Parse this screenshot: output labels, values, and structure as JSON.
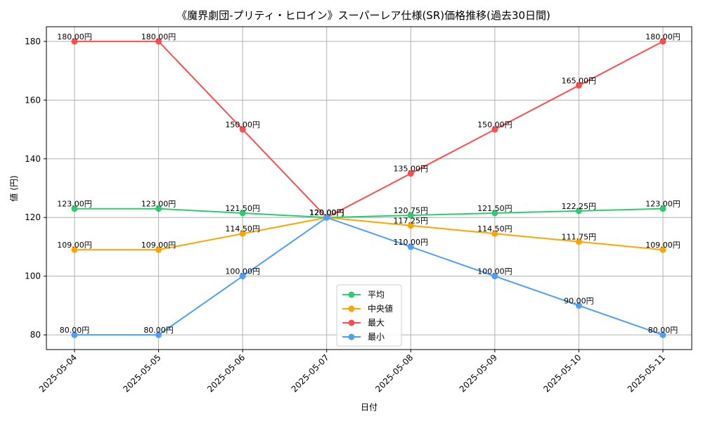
{
  "chart_data": {
    "type": "line",
    "title": "《魔界劇団-プリティ・ヒロイン》スーパーレア仕様(SR)価格推移(過去30日間)",
    "xlabel": "日付",
    "ylabel": "値 (円)",
    "categories": [
      "2025-05-04",
      "2025-05-05",
      "2025-05-06",
      "2025-05-07",
      "2025-05-08",
      "2025-05-09",
      "2025-05-10",
      "2025-05-11"
    ],
    "ylim": [
      75,
      185
    ],
    "yticks": [
      80,
      100,
      120,
      140,
      160,
      180
    ],
    "grid": true,
    "legend_position": "lower-center",
    "series": [
      {
        "name": "平均",
        "color": "#2ecc71",
        "values": [
          123.0,
          123.0,
          121.5,
          120.0,
          120.75,
          121.5,
          122.25,
          123.0
        ],
        "labels": [
          "123.00円",
          "123.00円",
          "121.50円",
          "120.00円",
          "120.75円",
          "121.50円",
          "122.25円",
          "123.00円"
        ]
      },
      {
        "name": "中央値",
        "color": "#ffa500",
        "values": [
          109.0,
          109.0,
          114.5,
          120.0,
          117.25,
          114.5,
          111.75,
          109.0
        ],
        "labels": [
          "109.00円",
          "109.00円",
          "114.50円",
          "120.00円",
          "117.25円",
          "114.50円",
          "111.75円",
          "109.00円"
        ]
      },
      {
        "name": "最大",
        "color": "#ff4d4d",
        "values": [
          180.0,
          180.0,
          150.0,
          120.0,
          135.0,
          150.0,
          165.0,
          180.0
        ],
        "labels": [
          "180.00円",
          "180.00円",
          "150.00円",
          "120.00円",
          "135.00円",
          "150.00円",
          "165.00円",
          "180.00円"
        ]
      },
      {
        "name": "最小",
        "color": "#4d9fff",
        "values": [
          80.0,
          80.0,
          100.0,
          120.0,
          110.0,
          100.0,
          90.0,
          80.0
        ],
        "labels": [
          "80.00円",
          "80.00円",
          "100.00円",
          "120.00円",
          "110.00円",
          "100.00円",
          "90.00円",
          "80.00円"
        ]
      }
    ]
  }
}
